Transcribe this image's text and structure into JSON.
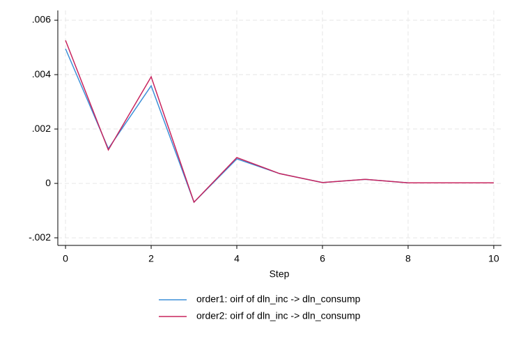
{
  "chart_data": {
    "type": "line",
    "x": [
      0,
      1,
      2,
      3,
      4,
      5,
      6,
      7,
      8,
      9,
      10
    ],
    "series": [
      {
        "name": "order1: oirf of dln_inc -> dln_consump",
        "color": "#3d8fd8",
        "values": [
          0.00495,
          0.00128,
          0.00359,
          -0.00069,
          0.0009,
          0.00036,
          3e-05,
          0.00015,
          2e-05,
          2e-05,
          2e-05
        ]
      },
      {
        "name": "order2: oirf of dln_inc -> dln_consump",
        "color": "#c8235d",
        "values": [
          0.00526,
          0.00123,
          0.00392,
          -0.00069,
          0.00095,
          0.00036,
          3e-05,
          0.00015,
          2e-05,
          2e-05,
          2e-05
        ]
      }
    ],
    "xlabel": "Step",
    "xlim": [
      -0.18,
      10.18
    ],
    "xticks": [
      0,
      2,
      4,
      6,
      8,
      10
    ],
    "ylim": [
      -0.00228,
      0.00636
    ],
    "yticks": [
      {
        "value": -0.002,
        "label": "-.002"
      },
      0,
      {
        "value": 0.002,
        "label": ".002"
      },
      {
        "value": 0.004,
        "label": ".004"
      },
      {
        "value": 0.006,
        "label": ".006"
      }
    ],
    "grid": true
  }
}
